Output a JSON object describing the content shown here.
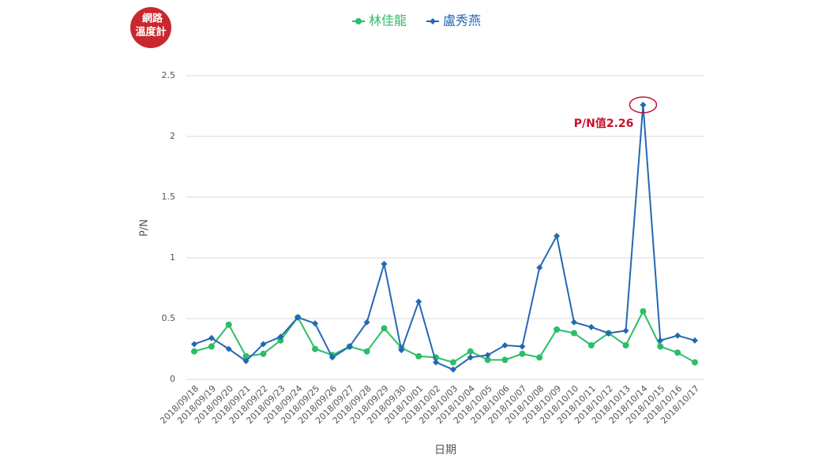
{
  "logo": {
    "lines": [
      "網路",
      "溫度計"
    ]
  },
  "chart_data": {
    "type": "line",
    "y_label": "P/N",
    "x_label": "日期",
    "annotation": "P/N值2.26",
    "categories": [
      "2018/09/18",
      "2018/09/19",
      "2018/09/20",
      "2018/09/21",
      "2018/09/22",
      "2018/09/23",
      "2018/09/24",
      "2018/09/25",
      "2018/09/26",
      "2018/09/27",
      "2018/09/28",
      "2018/09/29",
      "2018/09/30",
      "2018/10/01",
      "2018/10/02",
      "2018/10/03",
      "2018/10/04",
      "2018/10/05",
      "2018/10/06",
      "2018/10/07",
      "2018/10/08",
      "2018/10/09",
      "2018/10/10",
      "2018/10/11",
      "2018/10/12",
      "2018/10/13",
      "2018/10/14",
      "2018/10/15",
      "2018/10/16",
      "2018/10/17"
    ],
    "series": [
      {
        "name": "林佳龍",
        "color": "#2dbd68",
        "marker": "circle",
        "values": [
          0.23,
          0.27,
          0.45,
          0.19,
          0.21,
          0.32,
          0.51,
          0.25,
          0.2,
          0.27,
          0.23,
          0.42,
          0.26,
          0.19,
          0.18,
          0.14,
          0.23,
          0.16,
          0.16,
          0.21,
          0.18,
          0.41,
          0.38,
          0.28,
          0.38,
          0.28,
          0.56,
          0.27,
          0.22,
          0.14
        ]
      },
      {
        "name": "盧秀燕",
        "color": "#2468b4",
        "marker": "diamond",
        "values": [
          0.29,
          0.34,
          0.25,
          0.15,
          0.29,
          0.35,
          0.51,
          0.46,
          0.18,
          0.27,
          0.47,
          0.95,
          0.24,
          0.64,
          0.14,
          0.08,
          0.18,
          0.2,
          0.28,
          0.27,
          0.92,
          1.18,
          0.47,
          0.43,
          0.38,
          0.4,
          2.26,
          0.32,
          0.36,
          0.32
        ]
      }
    ],
    "ylim": [
      0,
      2.5
    ],
    "yticks": [
      0,
      0.5,
      1,
      1.5,
      2,
      2.5
    ],
    "grid": true
  }
}
